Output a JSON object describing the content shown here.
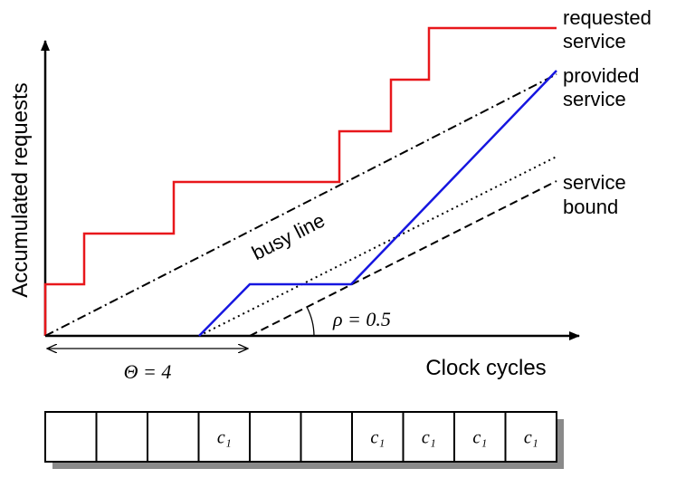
{
  "axes": {
    "y_label": "Accumulated requests",
    "x_label": "Clock cycles"
  },
  "curves": {
    "requested": [
      "requested",
      "service"
    ],
    "provided": [
      "provided",
      "service"
    ],
    "bound": [
      "service",
      "bound"
    ],
    "busy": "busy line"
  },
  "annotations": {
    "theta": "Θ = 4",
    "rho": "ρ = 0.5"
  },
  "slots": [
    null,
    null,
    null,
    "c₁",
    null,
    null,
    "c₁",
    "c₁",
    "c₁",
    "c₁"
  ]
}
